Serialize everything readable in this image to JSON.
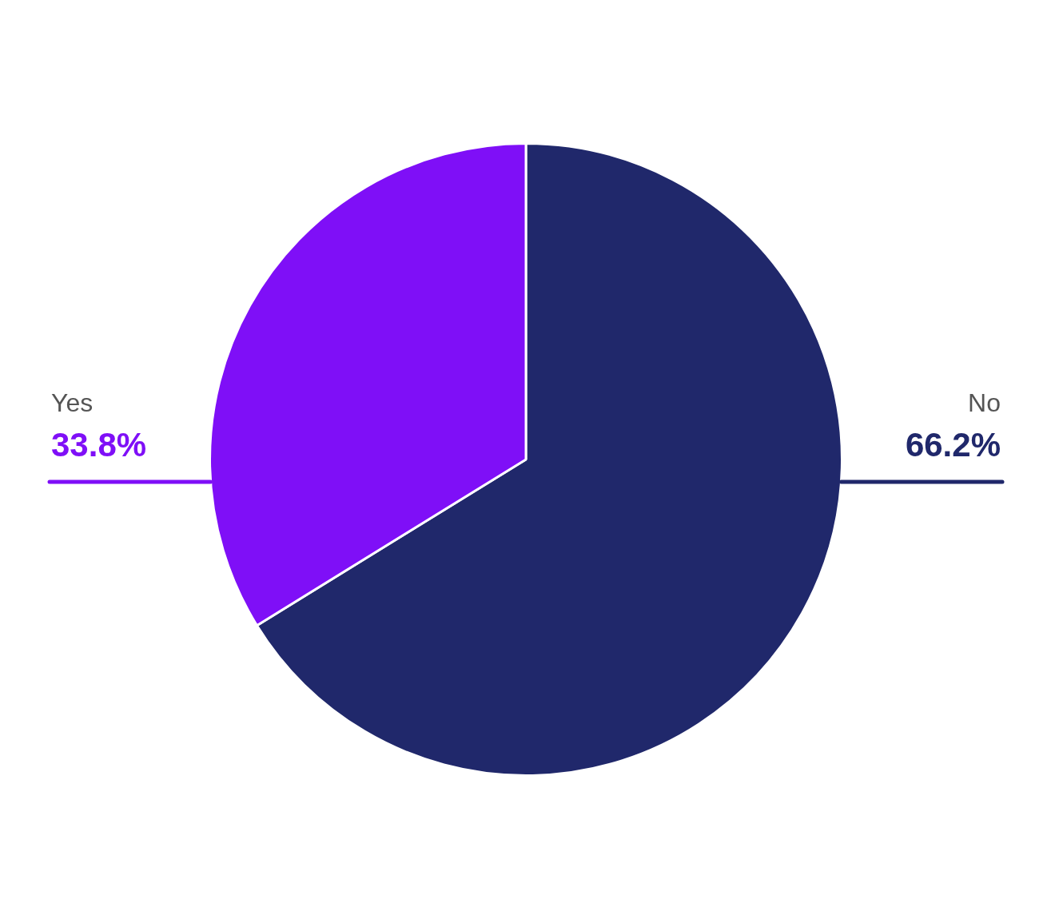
{
  "chart_data": {
    "type": "pie",
    "categories": [
      "No",
      "Yes"
    ],
    "values": [
      66.2,
      33.8
    ],
    "colors": [
      "#20286b",
      "#7f0ff7"
    ],
    "value_labels": [
      "66.2%",
      "33.8%"
    ],
    "legend": false
  }
}
